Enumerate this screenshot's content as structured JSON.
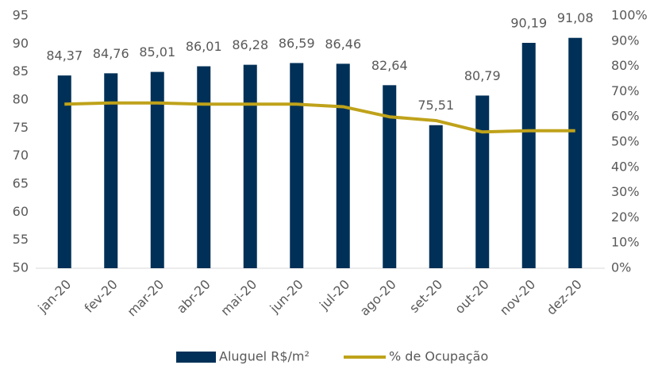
{
  "chart_data": {
    "type": "bar_line",
    "categories": [
      "jan-20",
      "fev-20",
      "mar-20",
      "abr-20",
      "mai-20",
      "jun-20",
      "jul-20",
      "ago-20",
      "set-20",
      "out-20",
      "nov-20",
      "dez-20"
    ],
    "series": [
      {
        "name": "Aluguel R$/m²",
        "color": "#003057",
        "type": "bar",
        "values": [
          84.37,
          84.76,
          85.01,
          86.01,
          86.28,
          86.59,
          86.46,
          82.64,
          75.51,
          80.79,
          90.19,
          91.08
        ],
        "value_labels": [
          "84,37",
          "84,76",
          "85,01",
          "86,01",
          "86,28",
          "86,59",
          "86,46",
          "82,64",
          "75,51",
          "80,79",
          "90,19",
          "91,08"
        ]
      },
      {
        "name": "% de Ocupação",
        "color": "#bfa21a",
        "type": "line",
        "axis": "y2",
        "values": [
          65,
          65.5,
          65.5,
          65,
          65,
          65,
          64,
          60,
          58.5,
          54,
          54.5,
          54.5
        ]
      }
    ],
    "ylim": [
      50,
      95
    ],
    "yticks": [
      50,
      55,
      60,
      65,
      70,
      75,
      80,
      85,
      90,
      95
    ],
    "y2lim": [
      0,
      100
    ],
    "y2ticks": [
      {
        "value": 0,
        "label": "0%"
      },
      {
        "value": 10,
        "label": "10%"
      },
      {
        "value": 20,
        "label": "20%"
      },
      {
        "value": 30,
        "label": "30%"
      },
      {
        "value": 40,
        "label": "40%"
      },
      {
        "value": 50,
        "label": "50%"
      },
      {
        "value": 60,
        "label": "60%"
      },
      {
        "value": 70,
        "label": "70%"
      },
      {
        "value": 80,
        "label": "80%"
      },
      {
        "value": 90,
        "label": "90%"
      },
      {
        "value": 100,
        "label": "100%"
      }
    ],
    "grid": false,
    "legend": "bottom"
  }
}
